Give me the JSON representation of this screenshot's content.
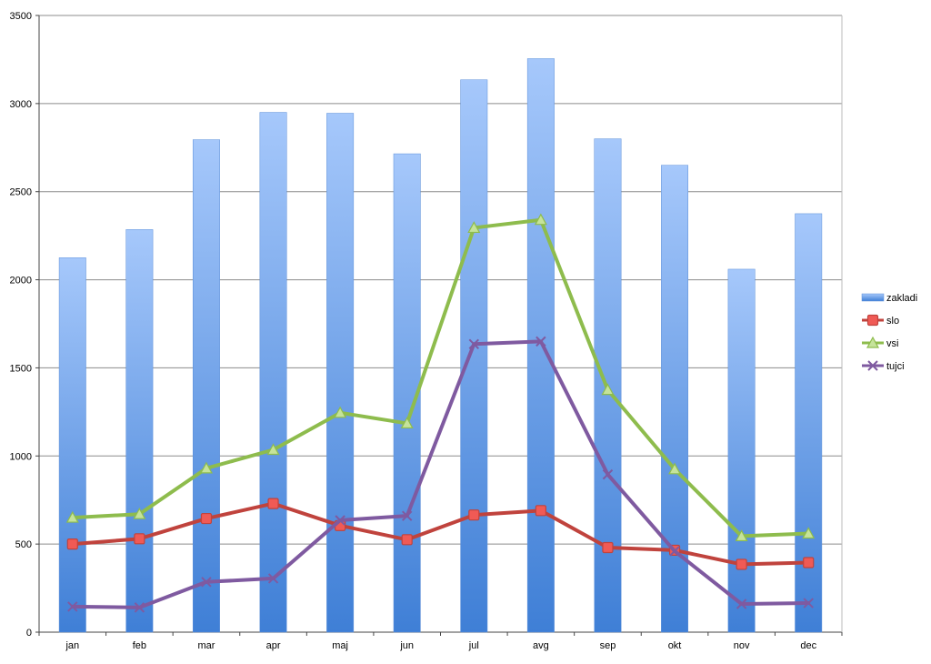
{
  "chart_data": {
    "type": "bar",
    "categories": [
      "jan",
      "feb",
      "mar",
      "apr",
      "maj",
      "jun",
      "jul",
      "avg",
      "sep",
      "okt",
      "nov",
      "dec"
    ],
    "ylim": [
      0,
      3500
    ],
    "yticks": [
      0,
      500,
      1000,
      1500,
      2000,
      2500,
      3000,
      3500
    ],
    "grid": true,
    "legend_position": "right",
    "series": [
      {
        "name": "zakladi",
        "kind": "bar",
        "color_top": "#a6c8fb",
        "color_bottom": "#3f7fd6",
        "values": [
          2125,
          2285,
          2795,
          2950,
          2945,
          2715,
          3135,
          3255,
          2800,
          2650,
          2060,
          2375
        ]
      },
      {
        "name": "slo",
        "kind": "line",
        "color": "#c0433d",
        "marker": "square",
        "values": [
          500,
          530,
          645,
          730,
          605,
          525,
          665,
          690,
          480,
          465,
          385,
          395
        ]
      },
      {
        "name": "vsi",
        "kind": "line",
        "color": "#8ebc4d",
        "marker": "triangle",
        "values": [
          650,
          670,
          930,
          1035,
          1245,
          1185,
          2295,
          2340,
          1375,
          925,
          545,
          560
        ]
      },
      {
        "name": "tujci",
        "kind": "line",
        "color": "#7f5aa0",
        "marker": "x",
        "values": [
          145,
          140,
          285,
          305,
          635,
          660,
          1635,
          1650,
          895,
          460,
          160,
          165
        ]
      }
    ]
  }
}
